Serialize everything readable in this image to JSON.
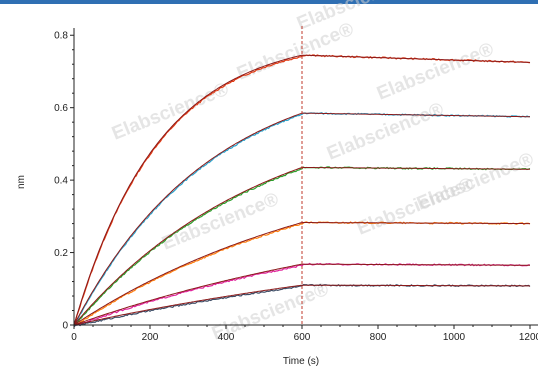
{
  "colors": {
    "top_bar": "#2f6fb3",
    "fit_line": "#8b1a1a",
    "marker_line": "#c0392b",
    "axis": "#222222"
  },
  "watermark_text": "Elabscience®",
  "chart_data": {
    "type": "line",
    "title": "",
    "xlabel": "Time (s)",
    "ylabel": "nm",
    "xlim": [
      0,
      1200
    ],
    "ylim": [
      0,
      0.82
    ],
    "x_ticks": [
      0,
      200,
      400,
      600,
      800,
      1000,
      1200
    ],
    "x_tick_labels": [
      "0",
      "200",
      "400",
      "600",
      "800",
      "1000",
      "1200"
    ],
    "y_ticks": [
      0,
      0.2,
      0.4,
      0.6,
      0.8
    ],
    "y_tick_labels": [
      "0",
      "0.2",
      "0.4",
      "0.6",
      "0.8"
    ],
    "grid": false,
    "legend": "none",
    "annotations": [
      {
        "type": "vertical-dashed-line",
        "x": 600
      }
    ],
    "series": [
      {
        "color": "#e23a12",
        "association_end_x": 600,
        "plateau_y": 0.745,
        "final_y": 0.725,
        "k": 0.0045
      },
      {
        "color": "#2aa3cc",
        "association_end_x": 600,
        "plateau_y": 0.585,
        "final_y": 0.575,
        "k": 0.0028
      },
      {
        "color": "#2ca02c",
        "association_end_x": 600,
        "plateau_y": 0.435,
        "final_y": 0.43,
        "k": 0.002
      },
      {
        "color": "#ff7f0e",
        "association_end_x": 600,
        "plateau_y": 0.283,
        "final_y": 0.28,
        "k": 0.0014
      },
      {
        "color": "#e0209a",
        "association_end_x": 600,
        "plateau_y": 0.168,
        "final_y": 0.165,
        "k": 0.001
      },
      {
        "color": "#3d4d66",
        "association_end_x": 600,
        "plateau_y": 0.11,
        "final_y": 0.108,
        "k": 0.0008
      }
    ]
  }
}
